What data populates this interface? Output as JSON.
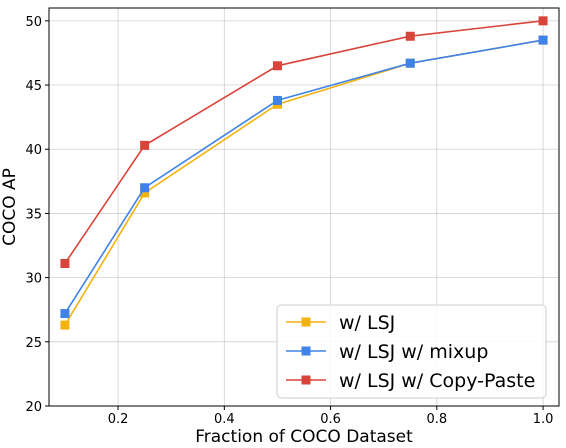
{
  "chart_data": {
    "type": "line",
    "xlabel": "Fraction of COCO Dataset",
    "ylabel": "COCO AP",
    "xlim": [
      0.07,
      1.03
    ],
    "ylim": [
      20,
      51
    ],
    "x_ticks": [
      0.2,
      0.4,
      0.6,
      0.8,
      1.0
    ],
    "x_tick_labels": [
      "0.2",
      "0.4",
      "0.6",
      "0.8",
      "1.0"
    ],
    "y_ticks": [
      20,
      25,
      30,
      35,
      40,
      45,
      50
    ],
    "y_tick_labels": [
      "20",
      "25",
      "30",
      "35",
      "40",
      "45",
      "50"
    ],
    "grid": true,
    "legend_position": "bottom-right",
    "x": [
      0.1,
      0.25,
      0.5,
      0.75,
      1.0
    ],
    "series": [
      {
        "name": "w/ LSJ",
        "color": "#f2b20f",
        "marker": "square",
        "values": [
          26.3,
          36.6,
          43.5,
          46.7,
          48.5
        ]
      },
      {
        "name": "w/ LSJ w/ mixup",
        "color": "#3f83e8",
        "marker": "square",
        "values": [
          27.2,
          37.0,
          43.8,
          46.7,
          48.5
        ]
      },
      {
        "name": "w/ LSJ w/ Copy-Paste",
        "color": "#d9443a",
        "marker": "square",
        "values": [
          31.1,
          40.3,
          46.5,
          48.8,
          50.0
        ]
      }
    ]
  }
}
